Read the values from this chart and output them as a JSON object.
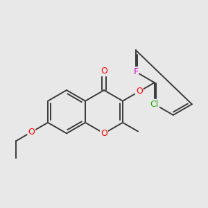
{
  "bg_color": "#e8e8e8",
  "bond_color": "#3a3a3a",
  "bond_width": 1.4,
  "atom_colors": {
    "O": "#ff0000",
    "Cl": "#22aa00",
    "F": "#cc00cc",
    "C": "#3a3a3a"
  },
  "font_size": 8.5
}
